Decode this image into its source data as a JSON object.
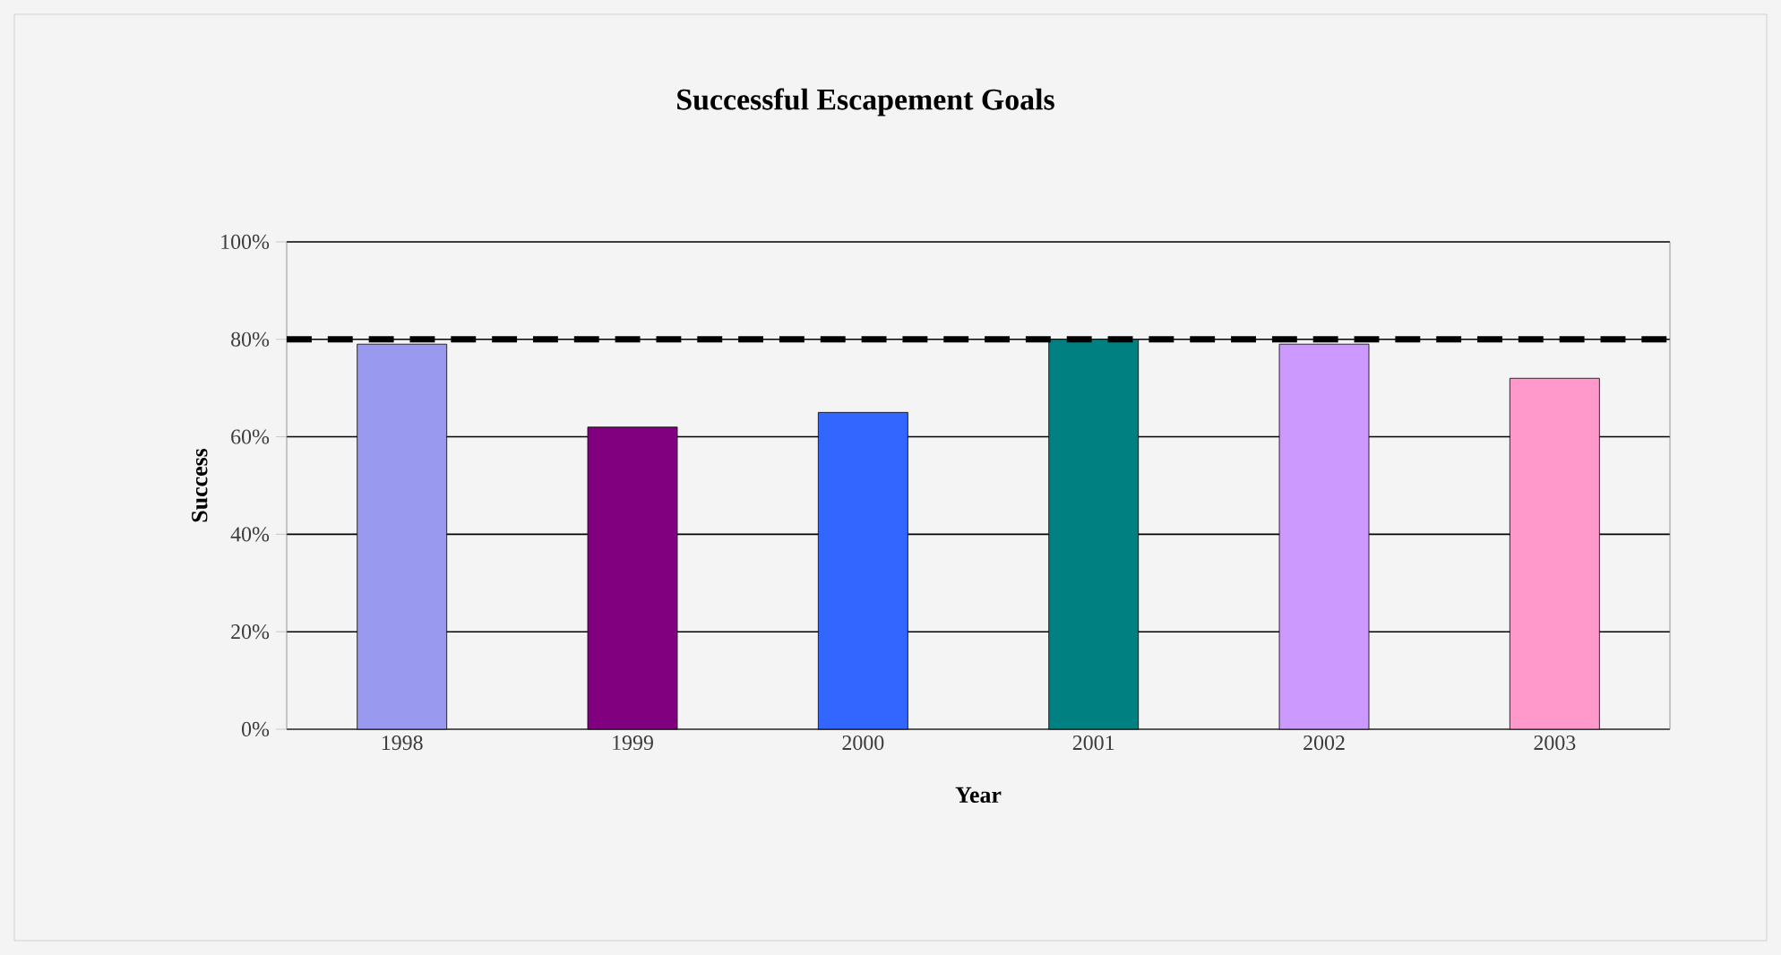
{
  "chart_data": {
    "type": "bar",
    "title": "Successful Escapement Goals",
    "xlabel": "Year",
    "ylabel": "Success",
    "categories": [
      "1998",
      "1999",
      "2000",
      "2001",
      "2002",
      "2003"
    ],
    "values": [
      79,
      62,
      65,
      80,
      79,
      72
    ],
    "colors": [
      "#9999f0",
      "#800080",
      "#3366ff",
      "#008080",
      "#cc99ff",
      "#ff99cc"
    ],
    "ylim": [
      0,
      100
    ],
    "yticks": [
      {
        "value": 0,
        "label": "0%"
      },
      {
        "value": 20,
        "label": "20%"
      },
      {
        "value": 40,
        "label": "40%"
      },
      {
        "value": 60,
        "label": "60%"
      },
      {
        "value": 80,
        "label": "80%"
      },
      {
        "value": 100,
        "label": "100%"
      }
    ],
    "grid": "y",
    "ref_lines": [
      {
        "axis": "y",
        "value": 80,
        "line_style": "dashed"
      }
    ]
  }
}
